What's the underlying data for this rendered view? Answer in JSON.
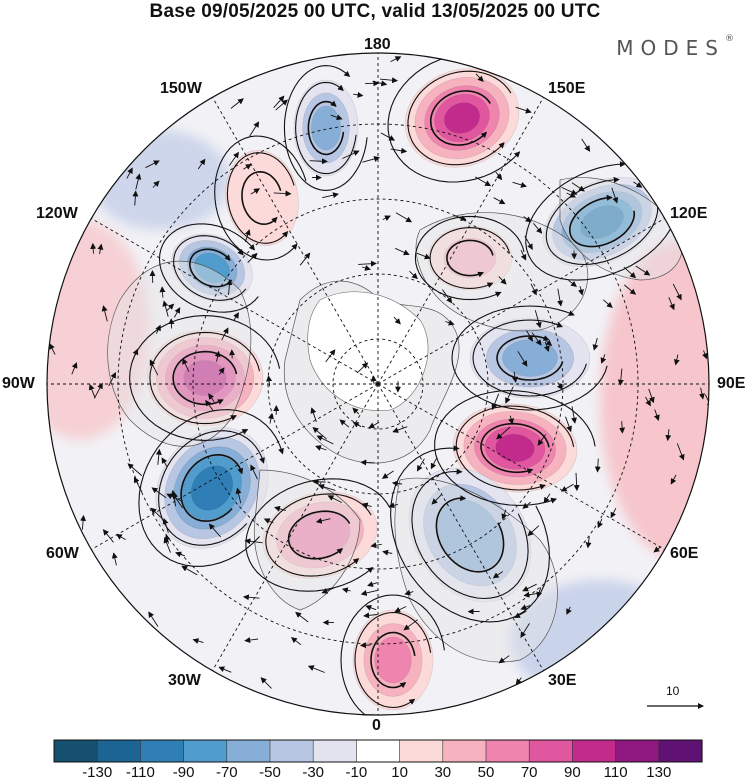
{
  "header": {
    "title": "Base 09/05/2025 00 UTC, valid 13/05/2025 00 UTC",
    "brand": "MODES",
    "brand_mark": "®"
  },
  "chart_data": {
    "type": "heatmap",
    "projection": "north polar stereographic",
    "title": "Base 09/05/2025 00 UTC, valid 13/05/2025 00 UTC",
    "longitude_labels": {
      "top": "180",
      "bottom": "0",
      "left": "90W",
      "right": "90E",
      "upper_left_1": "150W",
      "upper_left_2": "120W",
      "upper_right_1": "150E",
      "upper_right_2": "120E",
      "lower_left_1": "60W",
      "lower_left_2": "30W",
      "lower_right_1": "60E",
      "lower_right_2": "30E"
    },
    "grid": true,
    "vector_reference": {
      "value": "10"
    },
    "colorbar": {
      "tick_labels": [
        "-130",
        "-110",
        "-90",
        "-70",
        "-50",
        "-30",
        "-10",
        "10",
        "30",
        "50",
        "70",
        "90",
        "110",
        "130"
      ],
      "colors": [
        "#16506f",
        "#1b6493",
        "#2f7eb5",
        "#4f9ccd",
        "#86aed6",
        "#b7c6e3",
        "#e4e4f1",
        "#ffffff",
        "#fbdad9",
        "#f6b3bf",
        "#ef85af",
        "#e0569f",
        "#c22b8c",
        "#8e187f",
        "#5f1174"
      ]
    },
    "anomalies": [
      {
        "sign": "positive",
        "peak": 100,
        "region": "north of Bering Strait / 150E-180"
      },
      {
        "sign": "negative",
        "peak": -110,
        "region": "Sea of Okhotsk / 120E"
      },
      {
        "sign": "negative",
        "peak": -60,
        "region": "central Siberia / 90E-120E"
      },
      {
        "sign": "positive",
        "peak": 100,
        "region": "western Siberia / 60E-90E"
      },
      {
        "sign": "negative",
        "peak": -70,
        "region": "Scandinavia to Caspian / 30E-60E"
      },
      {
        "sign": "positive",
        "peak": 70,
        "region": "Europe / 0-30E"
      },
      {
        "sign": "positive",
        "peak": 60,
        "region": "Greenland Sea / 0-30W"
      },
      {
        "sign": "negative",
        "peak": -110,
        "region": "Labrador Sea / 60W"
      },
      {
        "sign": "positive",
        "peak": 110,
        "region": "Hudson Bay / 90W"
      },
      {
        "sign": "negative",
        "peak": -90,
        "region": "Western Canada / 120W"
      },
      {
        "sign": "positive",
        "peak": 30,
        "region": "Alaska Gulf / 150W"
      },
      {
        "sign": "negative",
        "peak": -60,
        "region": "Bering Sea / 160W"
      },
      {
        "sign": "positive",
        "peak": 40,
        "region": "Mongolia / 100E"
      }
    ]
  }
}
